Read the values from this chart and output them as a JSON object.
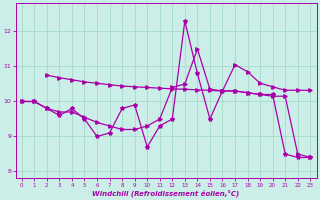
{
  "xlabel": "Windchill (Refroidissement éolien,°C)",
  "xlim": [
    -0.5,
    23.5
  ],
  "ylim": [
    7.8,
    12.8
  ],
  "yticks": [
    8,
    9,
    10,
    11,
    12
  ],
  "xticks": [
    0,
    1,
    2,
    3,
    4,
    5,
    6,
    7,
    8,
    9,
    10,
    11,
    12,
    13,
    14,
    15,
    16,
    17,
    18,
    19,
    20,
    21,
    22,
    23
  ],
  "background_color": "#cceee8",
  "grid_color": "#aaddcc",
  "line_color": "#aa00aa",
  "line1_x": [
    0,
    1,
    2,
    3,
    4,
    5,
    6,
    7,
    8,
    9,
    10,
    11,
    12,
    13,
    14,
    15,
    16,
    17,
    18,
    19,
    20,
    21,
    22,
    23
  ],
  "line1_y": [
    10.0,
    10.0,
    9.8,
    9.6,
    9.8,
    9.5,
    9.0,
    9.1,
    9.8,
    9.9,
    8.7,
    9.3,
    9.5,
    12.3,
    10.8,
    9.5,
    10.3,
    10.3,
    10.25,
    10.2,
    10.2,
    8.5,
    8.4,
    8.4
  ],
  "line2_x": [
    0,
    1,
    2,
    3,
    4,
    5,
    6,
    7,
    8,
    9,
    10,
    11,
    12,
    13,
    14,
    15,
    16,
    17,
    18,
    19,
    20,
    21,
    22,
    23
  ],
  "line2_y": [
    10.0,
    10.0,
    9.8,
    9.7,
    9.7,
    9.55,
    9.4,
    9.3,
    9.2,
    9.2,
    9.3,
    9.5,
    10.4,
    10.5,
    11.5,
    10.35,
    10.3,
    10.3,
    10.25,
    10.2,
    10.15,
    10.15,
    8.5,
    8.4
  ],
  "line3_x": [
    2,
    3,
    4,
    5,
    6,
    7,
    8,
    9,
    10,
    11,
    12,
    13,
    14,
    15,
    16,
    17,
    18,
    19,
    20,
    21,
    22,
    23
  ],
  "line3_y": [
    10.75,
    10.68,
    10.62,
    10.56,
    10.52,
    10.48,
    10.44,
    10.42,
    10.4,
    10.38,
    10.36,
    10.35,
    10.33,
    10.32,
    10.3,
    11.05,
    10.85,
    10.52,
    10.42,
    10.32,
    10.32,
    10.32
  ]
}
